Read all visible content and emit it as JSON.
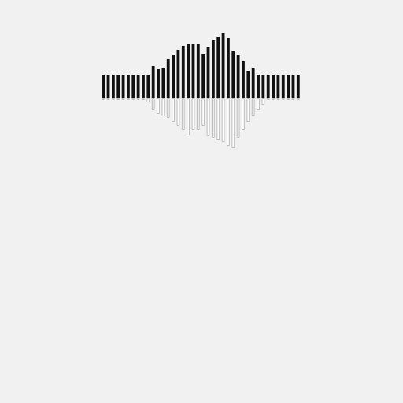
{
  "chart_data": {
    "type": "bar",
    "stacked": true,
    "tick_labels": false,
    "grid": false,
    "categories": [
      null,
      null,
      null,
      null,
      null,
      null,
      null,
      null,
      null,
      null,
      null,
      null,
      null,
      null,
      null,
      null,
      null,
      null,
      null,
      null,
      null,
      null,
      null,
      null,
      null,
      null,
      null,
      null,
      null,
      null,
      null,
      null,
      null,
      null,
      null,
      null,
      null,
      null,
      null,
      null
    ],
    "ylim": [
      -70,
      90
    ],
    "series": [
      {
        "color": "#111111",
        "values": [
          30,
          30,
          30,
          30,
          30,
          30,
          30,
          30,
          30,
          30,
          41,
          37,
          38,
          50,
          55,
          62,
          67,
          69,
          69,
          69,
          57,
          65,
          74,
          78,
          83,
          77,
          60,
          55,
          47,
          35,
          39,
          30,
          30,
          30,
          30,
          30,
          30,
          30,
          30,
          30
        ]
      },
      {
        "color": "#bbbbbb",
        "values": [
          -2,
          -2,
          -2,
          -2,
          -2,
          -2,
          -2,
          -2,
          -2,
          -5,
          -15,
          -20,
          -23,
          -25,
          -30,
          -35,
          -40,
          -47,
          -40,
          -40,
          -35,
          -48,
          -50,
          -53,
          -55,
          -60,
          -63,
          -50,
          -40,
          -30,
          -22,
          -15,
          -8,
          -2,
          -2,
          -2,
          -2,
          -2,
          -2,
          -2
        ]
      }
    ]
  }
}
